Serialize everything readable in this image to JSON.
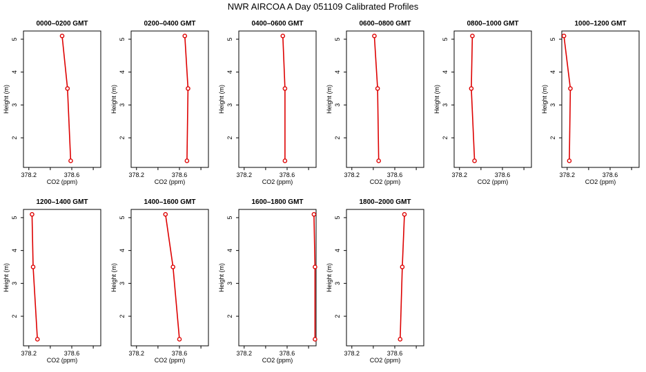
{
  "figure": {
    "title": "NWR AIRCOA A  Day 051109  Calibrated Profiles"
  },
  "colors": {
    "series": "#dd0000",
    "axes": "#000000",
    "background": "#ffffff"
  },
  "chart_data": [
    {
      "type": "line",
      "title": "0000–0200 GMT",
      "xlabel": "CO2 (ppm)",
      "ylabel": "Height (m)",
      "xlim": [
        378.15,
        378.87
      ],
      "ylim": [
        1.1,
        5.25
      ],
      "xticks": [
        378.2,
        378.4,
        378.6,
        378.8
      ],
      "xtick_labels": [
        "378.2",
        "",
        "378.6",
        ""
      ],
      "yticks": [
        2,
        3,
        4,
        5
      ],
      "grid": false,
      "legend": "none",
      "series": [
        {
          "x": [
            378.51,
            378.56,
            378.59
          ],
          "y": [
            5.1,
            3.5,
            1.3
          ]
        }
      ]
    },
    {
      "type": "line",
      "title": "0200–0400 GMT",
      "xlabel": "CO2 (ppm)",
      "ylabel": "Height (m)",
      "xlim": [
        378.15,
        378.87
      ],
      "ylim": [
        1.1,
        5.25
      ],
      "xticks": [
        378.2,
        378.4,
        378.6,
        378.8
      ],
      "xtick_labels": [
        "378.2",
        "",
        "378.6",
        ""
      ],
      "yticks": [
        2,
        3,
        4,
        5
      ],
      "grid": false,
      "legend": "none",
      "series": [
        {
          "x": [
            378.65,
            378.68,
            378.67
          ],
          "y": [
            5.1,
            3.5,
            1.3
          ]
        }
      ]
    },
    {
      "type": "line",
      "title": "0400–0600 GMT",
      "xlabel": "CO2 (ppm)",
      "ylabel": "Height (m)",
      "xlim": [
        378.15,
        378.87
      ],
      "ylim": [
        1.1,
        5.25
      ],
      "xticks": [
        378.2,
        378.4,
        378.6,
        378.8
      ],
      "xtick_labels": [
        "378.2",
        "",
        "378.6",
        ""
      ],
      "yticks": [
        2,
        3,
        4,
        5
      ],
      "grid": false,
      "legend": "none",
      "series": [
        {
          "x": [
            378.56,
            378.58,
            378.58
          ],
          "y": [
            5.1,
            3.5,
            1.3
          ]
        }
      ]
    },
    {
      "type": "line",
      "title": "0600–0800 GMT",
      "xlabel": "CO2 (ppm)",
      "ylabel": "Height (m)",
      "xlim": [
        378.15,
        378.87
      ],
      "ylim": [
        1.1,
        5.25
      ],
      "xticks": [
        378.2,
        378.4,
        378.6,
        378.8
      ],
      "xtick_labels": [
        "378.2",
        "",
        "378.6",
        ""
      ],
      "yticks": [
        2,
        3,
        4,
        5
      ],
      "grid": false,
      "legend": "none",
      "series": [
        {
          "x": [
            378.41,
            378.44,
            378.45
          ],
          "y": [
            5.1,
            3.5,
            1.3
          ]
        }
      ]
    },
    {
      "type": "line",
      "title": "0800–1000 GMT",
      "xlabel": "CO2 (ppm)",
      "ylabel": "Height (m)",
      "xlim": [
        378.15,
        378.87
      ],
      "ylim": [
        1.1,
        5.25
      ],
      "xticks": [
        378.2,
        378.4,
        378.6,
        378.8
      ],
      "xtick_labels": [
        "378.2",
        "",
        "378.6",
        ""
      ],
      "yticks": [
        2,
        3,
        4,
        5
      ],
      "grid": false,
      "legend": "none",
      "series": [
        {
          "x": [
            378.32,
            378.31,
            378.34
          ],
          "y": [
            5.1,
            3.5,
            1.3
          ]
        }
      ]
    },
    {
      "type": "line",
      "title": "1000–1200 GMT",
      "xlabel": "CO2 (ppm)",
      "ylabel": "Height (m)",
      "xlim": [
        378.15,
        378.87
      ],
      "ylim": [
        1.1,
        5.25
      ],
      "xticks": [
        378.2,
        378.4,
        378.6,
        378.8
      ],
      "xtick_labels": [
        "378.2",
        "",
        "378.6",
        ""
      ],
      "yticks": [
        2,
        3,
        4,
        5
      ],
      "grid": false,
      "legend": "none",
      "series": [
        {
          "x": [
            378.17,
            378.23,
            378.22
          ],
          "y": [
            5.1,
            3.5,
            1.3
          ]
        }
      ]
    },
    {
      "type": "line",
      "title": "1200–1400 GMT",
      "xlabel": "CO2 (ppm)",
      "ylabel": "Height (m)",
      "xlim": [
        378.15,
        378.87
      ],
      "ylim": [
        1.1,
        5.25
      ],
      "xticks": [
        378.2,
        378.4,
        378.6,
        378.8
      ],
      "xtick_labels": [
        "378.2",
        "",
        "378.6",
        ""
      ],
      "yticks": [
        2,
        3,
        4,
        5
      ],
      "grid": false,
      "legend": "none",
      "series": [
        {
          "x": [
            378.23,
            378.24,
            378.28
          ],
          "y": [
            5.1,
            3.5,
            1.3
          ]
        }
      ]
    },
    {
      "type": "line",
      "title": "1400–1600 GMT",
      "xlabel": "CO2 (ppm)",
      "ylabel": "Height (m)",
      "xlim": [
        378.15,
        378.87
      ],
      "ylim": [
        1.1,
        5.25
      ],
      "xticks": [
        378.2,
        378.4,
        378.6,
        378.8
      ],
      "xtick_labels": [
        "378.2",
        "",
        "378.6",
        ""
      ],
      "yticks": [
        2,
        3,
        4,
        5
      ],
      "grid": false,
      "legend": "none",
      "series": [
        {
          "x": [
            378.47,
            378.54,
            378.6
          ],
          "y": [
            5.1,
            3.5,
            1.3
          ]
        }
      ]
    },
    {
      "type": "line",
      "title": "1600–1800 GMT",
      "xlabel": "CO2 (ppm)",
      "ylabel": "Height (m)",
      "xlim": [
        378.15,
        378.87
      ],
      "ylim": [
        1.1,
        5.25
      ],
      "xticks": [
        378.2,
        378.4,
        378.6,
        378.8
      ],
      "xtick_labels": [
        "378.2",
        "",
        "378.6",
        ""
      ],
      "yticks": [
        2,
        3,
        4,
        5
      ],
      "grid": false,
      "legend": "none",
      "series": [
        {
          "x": [
            378.85,
            378.86,
            378.86
          ],
          "y": [
            5.1,
            3.5,
            1.3
          ]
        }
      ]
    },
    {
      "type": "line",
      "title": "1800–2000 GMT",
      "xlabel": "CO2 (ppm)",
      "ylabel": "Height (m)",
      "xlim": [
        378.15,
        378.87
      ],
      "ylim": [
        1.1,
        5.25
      ],
      "xticks": [
        378.2,
        378.4,
        378.6,
        378.8
      ],
      "xtick_labels": [
        "378.2",
        "",
        "378.6",
        ""
      ],
      "yticks": [
        2,
        3,
        4,
        5
      ],
      "grid": false,
      "legend": "none",
      "series": [
        {
          "x": [
            378.69,
            378.67,
            378.65
          ],
          "y": [
            5.1,
            3.5,
            1.3
          ]
        }
      ]
    }
  ]
}
